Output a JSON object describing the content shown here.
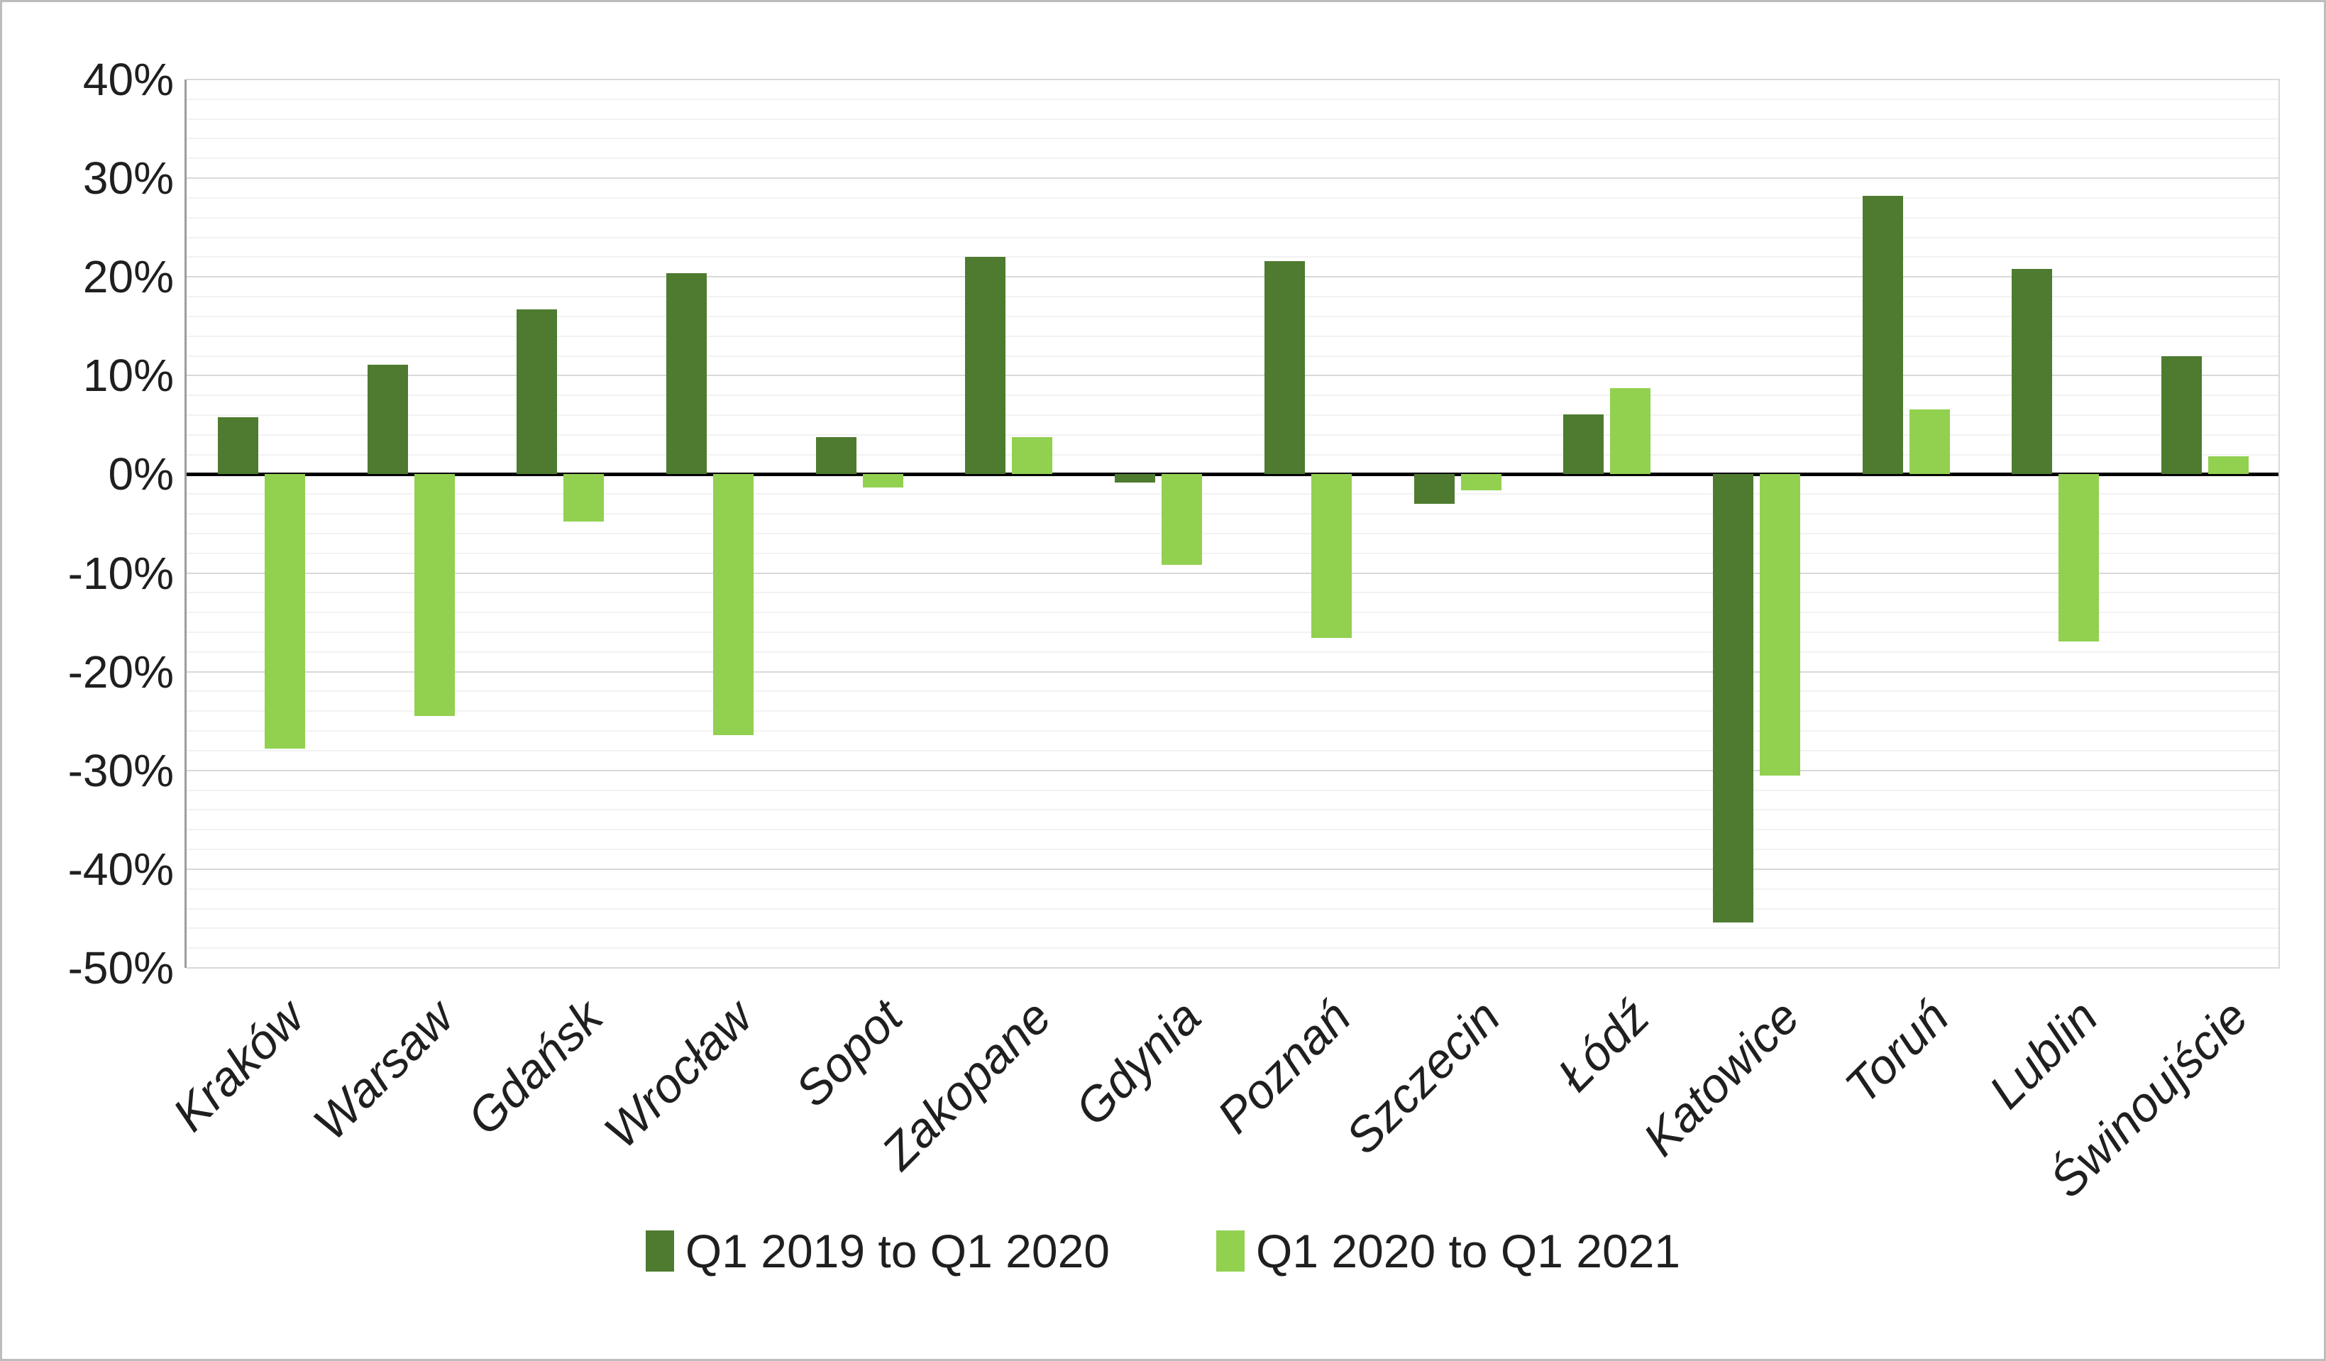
{
  "chart_data": {
    "type": "bar",
    "title": "",
    "xlabel": "",
    "ylabel": "",
    "categories": [
      "Kraków",
      "Warsaw",
      "Gdańsk",
      "Wrocław",
      "Sopot",
      "Zakopane",
      "Gdynia",
      "Poznań",
      "Szczecin",
      "Łódź",
      "Katowice",
      "Toruń",
      "Lublin",
      "Świnoujście"
    ],
    "series": [
      {
        "name": "Q1 2019 to Q1 2020",
        "color": "#4e7b2f",
        "values": [
          5.8,
          11.1,
          16.7,
          20.4,
          3.8,
          22.0,
          -0.8,
          21.6,
          -3.0,
          6.1,
          -45.4,
          28.2,
          20.8,
          12.0
        ]
      },
      {
        "name": "Q1 2020 to Q1 2021",
        "color": "#92d050",
        "values": [
          -27.8,
          -24.5,
          -4.8,
          -26.4,
          -1.3,
          3.8,
          -9.2,
          -16.6,
          -1.6,
          8.7,
          -30.5,
          6.6,
          -16.9,
          1.8
        ]
      }
    ],
    "ylim": [
      -50,
      40
    ],
    "ytick_step": 10,
    "minor_gridline_step": 2,
    "ytick_labels": [
      "40%",
      "30%",
      "20%",
      "10%",
      "0%",
      "-10%",
      "-20%",
      "-30%",
      "-40%",
      "-50%"
    ],
    "grid": true,
    "legend_position": "bottom",
    "unit": "%"
  },
  "style": {
    "major_grid_color": "#d9d9d9",
    "minor_grid_color": "#f2f2f2",
    "zero_line_color": "#000000",
    "axis_line_color": "#9d9d9d",
    "text_color": "#1f1f1f",
    "background_color": "#ffffff",
    "frame_border_color": "#bdbdbd"
  }
}
